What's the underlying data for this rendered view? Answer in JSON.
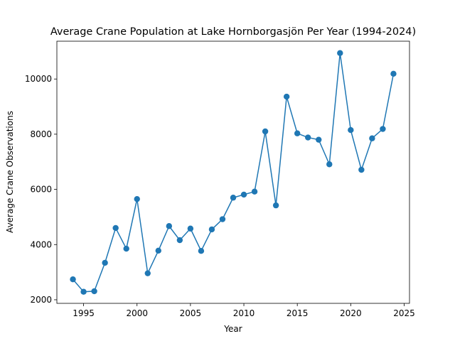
{
  "chart_data": {
    "type": "line",
    "title": "Average Crane Population at Lake Hornborgasjön Per Year (1994-2024)",
    "xlabel": "Year",
    "ylabel": "Average Crane Observations",
    "xlim": [
      1992.5,
      2025.5
    ],
    "ylim": [
      1870,
      11370
    ],
    "xticks": [
      1995,
      2000,
      2005,
      2010,
      2015,
      2020,
      2025
    ],
    "yticks": [
      2000,
      4000,
      6000,
      8000,
      10000
    ],
    "grid": false,
    "marker": "circle",
    "color": "#1f77b4",
    "series": [
      {
        "x": [
          1994,
          1995,
          1996,
          1997,
          1998,
          1999,
          2000,
          2001,
          2002,
          2003,
          2004,
          2005,
          2006,
          2007,
          2008,
          2009,
          2010,
          2011,
          2012,
          2013,
          2014,
          2015,
          2016,
          2017,
          2018,
          2019,
          2020,
          2021,
          2022,
          2023,
          2024
        ],
        "y": [
          2740,
          2290,
          2310,
          3340,
          4600,
          3850,
          5650,
          2960,
          3780,
          4670,
          4160,
          4580,
          3770,
          4550,
          4920,
          5700,
          5810,
          5920,
          8100,
          5420,
          9360,
          8030,
          7880,
          7800,
          6910,
          10940,
          8150,
          6710,
          7850,
          8190,
          10190
        ]
      }
    ]
  }
}
